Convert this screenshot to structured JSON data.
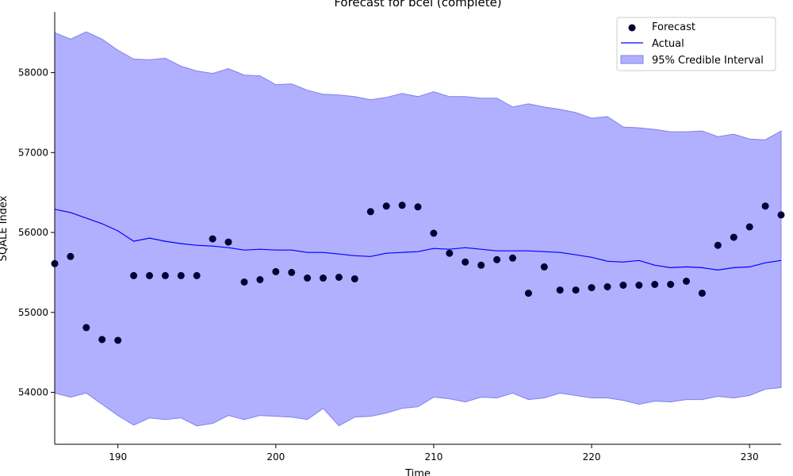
{
  "chart_data": {
    "type": "line",
    "title": "Forecast for bcel (complete)",
    "xlabel": "Time",
    "ylabel": "SQALE Index",
    "xlim": [
      186,
      232
    ],
    "ylim": [
      53350,
      58760
    ],
    "xticks": [
      190,
      200,
      210,
      220,
      230
    ],
    "yticks": [
      54000,
      55000,
      56000,
      57000,
      58000
    ],
    "grid": false,
    "legend_position": "top-right",
    "legend": [
      "Forecast",
      "Actual",
      "95% Credible Interval"
    ],
    "x": [
      186,
      187,
      188,
      189,
      190,
      191,
      192,
      193,
      194,
      195,
      196,
      197,
      198,
      199,
      200,
      201,
      202,
      203,
      204,
      205,
      206,
      207,
      208,
      209,
      210,
      211,
      212,
      213,
      214,
      215,
      216,
      217,
      218,
      219,
      220,
      221,
      222,
      223,
      224,
      225,
      226,
      227,
      228,
      229,
      230,
      231,
      232
    ],
    "series": [
      {
        "name": "Forecast",
        "style": "scatter",
        "color": "#000033",
        "values": [
          55610,
          55700,
          54810,
          54660,
          54650,
          55460,
          55460,
          55460,
          55460,
          55460,
          55920,
          55880,
          55380,
          55410,
          55510,
          55500,
          55430,
          55430,
          55440,
          55420,
          56260,
          56330,
          56340,
          56320,
          55990,
          55740,
          55630,
          55590,
          55660,
          55680,
          55240,
          55570,
          55280,
          55280,
          55310,
          55320,
          55340,
          55340,
          55350,
          55350,
          55390,
          55240,
          55840,
          55940,
          56070,
          56330,
          56220
        ]
      },
      {
        "name": "Actual",
        "style": "line",
        "color": "#0000ff",
        "values": [
          56290,
          56250,
          56180,
          56110,
          56020,
          55890,
          55930,
          55890,
          55860,
          55840,
          55830,
          55810,
          55780,
          55790,
          55780,
          55780,
          55750,
          55750,
          55730,
          55710,
          55700,
          55740,
          55750,
          55760,
          55800,
          55790,
          55810,
          55790,
          55770,
          55770,
          55770,
          55760,
          55750,
          55720,
          55690,
          55640,
          55630,
          55650,
          55590,
          55560,
          55570,
          55560,
          55530,
          55560,
          55570,
          55620,
          55650
        ]
      },
      {
        "name": "95% Credible Interval",
        "style": "band",
        "color": "#b0b0ff",
        "edge_color": "#8080ee",
        "upper": [
          58500,
          58420,
          58510,
          58420,
          58280,
          58170,
          58160,
          58180,
          58080,
          58020,
          57990,
          58050,
          57970,
          57960,
          57850,
          57860,
          57780,
          57730,
          57720,
          57700,
          57660,
          57690,
          57740,
          57700,
          57760,
          57700,
          57700,
          57680,
          57680,
          57570,
          57610,
          57570,
          57540,
          57500,
          57430,
          57450,
          57320,
          57310,
          57290,
          57260,
          57260,
          57270,
          57200,
          57230,
          57170,
          57160,
          57270
        ],
        "lower": [
          53990,
          53940,
          53990,
          53850,
          53710,
          53590,
          53680,
          53660,
          53680,
          53580,
          53610,
          53710,
          53660,
          53710,
          53700,
          53690,
          53660,
          53800,
          53580,
          53690,
          53700,
          53740,
          53800,
          53820,
          53940,
          53920,
          53880,
          53940,
          53930,
          53990,
          53910,
          53930,
          53990,
          53960,
          53930,
          53930,
          53900,
          53850,
          53890,
          53880,
          53910,
          53910,
          53950,
          53930,
          53960,
          54040,
          54060
        ]
      }
    ]
  }
}
